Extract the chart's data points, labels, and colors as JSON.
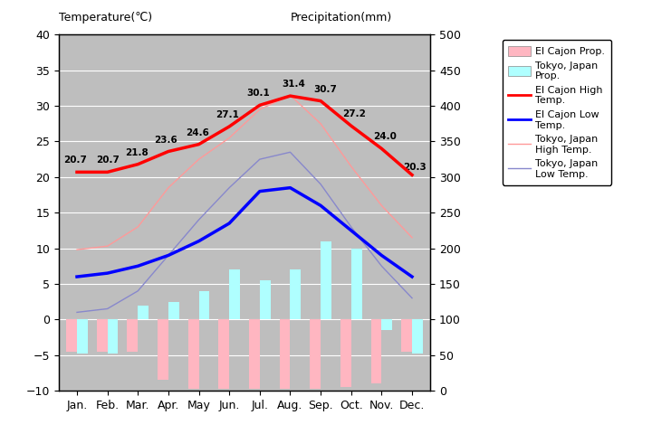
{
  "months": [
    "Jan.",
    "Feb.",
    "Mar.",
    "Apr.",
    "May",
    "Jun.",
    "Jul.",
    "Aug.",
    "Sep.",
    "Oct.",
    "Nov.",
    "Dec."
  ],
  "el_cajon_high": [
    20.7,
    20.7,
    21.8,
    23.6,
    24.6,
    27.1,
    30.1,
    31.4,
    30.7,
    27.2,
    24.0,
    20.3
  ],
  "el_cajon_low": [
    6.0,
    6.5,
    7.5,
    9.0,
    11.0,
    13.5,
    18.0,
    18.5,
    16.0,
    12.5,
    9.0,
    6.0
  ],
  "tokyo_high": [
    9.8,
    10.3,
    13.0,
    18.5,
    22.5,
    25.5,
    29.5,
    31.5,
    27.5,
    21.5,
    16.0,
    11.5
  ],
  "tokyo_low": [
    1.0,
    1.5,
    4.0,
    9.0,
    14.0,
    18.5,
    22.5,
    23.5,
    19.0,
    13.0,
    7.5,
    3.0
  ],
  "el_cajon_precip_bar": [
    -4.5,
    -4.5,
    -4.5,
    -8.5,
    -9.8,
    -9.8,
    -9.8,
    -9.8,
    -9.8,
    -9.5,
    -9.0,
    -4.5
  ],
  "tokyo_precip_bar": [
    -4.8,
    -4.8,
    2.0,
    2.5,
    4.0,
    7.0,
    5.5,
    7.0,
    11.0,
    10.0,
    -1.5,
    -4.8
  ],
  "el_cajon_high_labels": [
    "20.7",
    "20.7",
    "21.8",
    "23.6",
    "24.6",
    "27.1",
    "30.1",
    "31.4",
    "30.7",
    "27.2",
    "24.0",
    "20.3"
  ],
  "el_cajon_bar_color": "#FFB6C1",
  "tokyo_bar_color": "#AFFFFF",
  "el_cajon_high_color": "#FF0000",
  "el_cajon_low_color": "#0000FF",
  "tokyo_high_color": "#FF9999",
  "tokyo_low_color": "#8888CC",
  "temp_ylim": [
    -10,
    40
  ],
  "precip_ylim": [
    0,
    500
  ],
  "temp_yticks": [
    -10,
    -5,
    0,
    5,
    10,
    15,
    20,
    25,
    30,
    35,
    40
  ],
  "precip_yticks": [
    0,
    50,
    100,
    150,
    200,
    250,
    300,
    350,
    400,
    450,
    500
  ],
  "title_left": "Temperature(℃)",
  "title_right": "Precipitation(mm)",
  "plot_bg_color": "#BEBEBE",
  "fig_bg_color": "#FFFFFF"
}
